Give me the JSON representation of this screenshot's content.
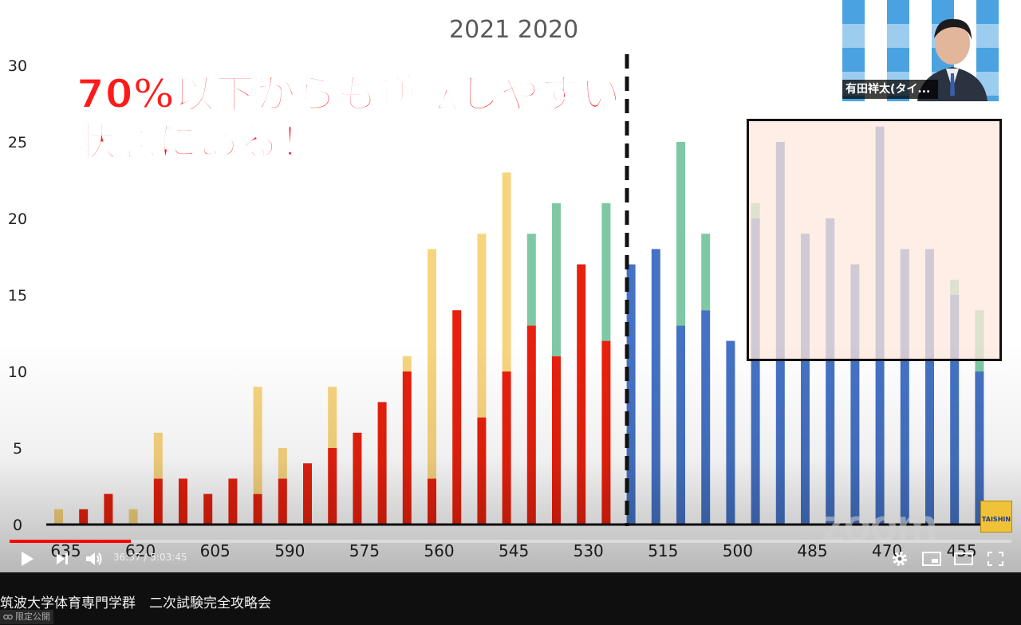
{
  "chart_data": {
    "type": "bar",
    "stacked": true,
    "legend_text": "2021 2020",
    "x_tick_labels": [
      "635",
      "620",
      "605",
      "590",
      "575",
      "560",
      "545",
      "530",
      "515",
      "500",
      "485",
      "470",
      "455"
    ],
    "yticks": [
      "0",
      "5",
      "10",
      "15",
      "20",
      "25",
      "30"
    ],
    "ylim": [
      0,
      30
    ],
    "bars": [
      {
        "base": 0,
        "top": 1,
        "base_color": "#e8200d",
        "top_color": "#f7d47e"
      },
      {
        "base": 1,
        "top": 0,
        "base_color": "#e8200d",
        "top_color": "#f7d47e"
      },
      {
        "base": 2,
        "top": 0,
        "base_color": "#e8200d",
        "top_color": "#f7d47e"
      },
      {
        "base": 0,
        "top": 1,
        "base_color": "#e8200d",
        "top_color": "#f7d47e"
      },
      {
        "base": 3,
        "top": 3,
        "base_color": "#e8200d",
        "top_color": "#f7d47e"
      },
      {
        "base": 3,
        "top": 0,
        "base_color": "#e8200d",
        "top_color": "#f7d47e"
      },
      {
        "base": 2,
        "top": 0,
        "base_color": "#e8200d",
        "top_color": "#f7d47e"
      },
      {
        "base": 3,
        "top": 0,
        "base_color": "#e8200d",
        "top_color": "#f7d47e"
      },
      {
        "base": 2,
        "top": 7,
        "base_color": "#e8200d",
        "top_color": "#f7d47e"
      },
      {
        "base": 3,
        "top": 2,
        "base_color": "#e8200d",
        "top_color": "#f7d47e"
      },
      {
        "base": 4,
        "top": 0,
        "base_color": "#e8200d",
        "top_color": "#f7d47e"
      },
      {
        "base": 5,
        "top": 4,
        "base_color": "#e8200d",
        "top_color": "#f7d47e"
      },
      {
        "base": 6,
        "top": 0,
        "base_color": "#e8200d",
        "top_color": "#f7d47e"
      },
      {
        "base": 8,
        "top": 0,
        "base_color": "#e8200d",
        "top_color": "#f7d47e"
      },
      {
        "base": 10,
        "top": 1,
        "base_color": "#e8200d",
        "top_color": "#f7d47e"
      },
      {
        "base": 3,
        "top": 15,
        "base_color": "#e8200d",
        "top_color": "#f7d47e"
      },
      {
        "base": 14,
        "top": 0,
        "base_color": "#e8200d",
        "top_color": "#f7d47e"
      },
      {
        "base": 7,
        "top": 12,
        "base_color": "#e8200d",
        "top_color": "#f7d47e"
      },
      {
        "base": 10,
        "top": 13,
        "base_color": "#e8200d",
        "top_color": "#f7d47e"
      },
      {
        "base": 13,
        "top": 6,
        "base_color": "#e8200d",
        "top_color": "#7ec9a4"
      },
      {
        "base": 11,
        "top": 10,
        "base_color": "#e8200d",
        "top_color": "#7ec9a4"
      },
      {
        "base": 17,
        "top": 0,
        "base_color": "#e8200d",
        "top_color": "#7ec9a4"
      },
      {
        "base": 12,
        "top": 9,
        "base_color": "#e8200d",
        "top_color": "#7ec9a4"
      },
      {
        "base": 17,
        "top": 0,
        "base_color": "#4472c4",
        "top_color": "#7ec9a4"
      },
      {
        "base": 18,
        "top": 0,
        "base_color": "#4472c4",
        "top_color": "#7ec9a4"
      },
      {
        "base": 13,
        "top": 12,
        "base_color": "#4472c4",
        "top_color": "#7ec9a4"
      },
      {
        "base": 14,
        "top": 5,
        "base_color": "#4472c4",
        "top_color": "#7ec9a4"
      },
      {
        "base": 12,
        "top": 0,
        "base_color": "#4472c4",
        "top_color": "#7ec9a4"
      },
      {
        "base": 20,
        "top": 1,
        "base_color": "#4472c4",
        "top_color": "#7ec9a4"
      },
      {
        "base": 25,
        "top": 0,
        "base_color": "#4472c4",
        "top_color": "#7ec9a4"
      },
      {
        "base": 19,
        "top": 0,
        "base_color": "#4472c4",
        "top_color": "#7ec9a4"
      },
      {
        "base": 20,
        "top": 0,
        "base_color": "#4472c4",
        "top_color": "#7ec9a4"
      },
      {
        "base": 17,
        "top": 0,
        "base_color": "#4472c4",
        "top_color": "#7ec9a4"
      },
      {
        "base": 26,
        "top": 0,
        "base_color": "#4472c4",
        "top_color": "#7ec9a4"
      },
      {
        "base": 18,
        "top": 0,
        "base_color": "#4472c4",
        "top_color": "#7ec9a4"
      },
      {
        "base": 18,
        "top": 0,
        "base_color": "#4472c4",
        "top_color": "#7ec9a4"
      },
      {
        "base": 15,
        "top": 1,
        "base_color": "#4472c4",
        "top_color": "#7ec9a4"
      },
      {
        "base": 10,
        "top": 4,
        "base_color": "#4472c4",
        "top_color": "#7ec9a4"
      }
    ],
    "annotations": {
      "headline_line1": "70%以下からも逆転しやすい",
      "headline_line2": "状態にある！"
    },
    "grid": false,
    "colors": {
      "red": "#e8200d",
      "yellow": "#f7d47e",
      "green": "#7ec9a4",
      "blue": "#4472c4"
    }
  },
  "overlay": {
    "participant_name": "有田祥太(タイ...",
    "webcam_logo_text": "TAISHIN",
    "watermark": "zoom",
    "corner_logo_text": "TAISHIN"
  },
  "player": {
    "current_time": "36:37",
    "separator": " / ",
    "duration": "5:03:45",
    "progress_fraction": 0.1207,
    "icons": [
      "play-icon",
      "next-icon",
      "volume-icon",
      "settings-icon",
      "miniplayer-icon",
      "theater-icon",
      "fullscreen-icon"
    ]
  },
  "video": {
    "title": "筑波大学体育専門学群　二次試験完全攻略会",
    "visibility": "限定公開"
  }
}
